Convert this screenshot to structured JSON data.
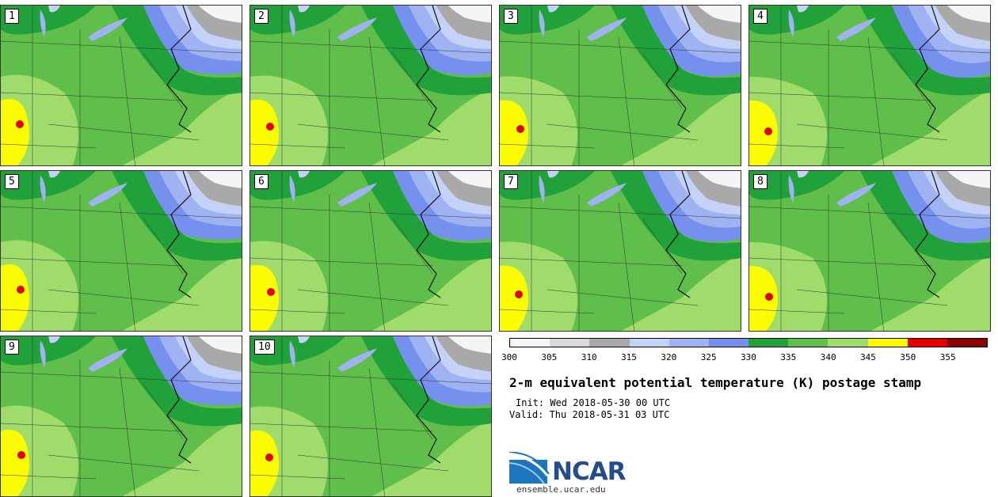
{
  "panels": [
    {
      "label": "1"
    },
    {
      "label": "2"
    },
    {
      "label": "3"
    },
    {
      "label": "4"
    },
    {
      "label": "5"
    },
    {
      "label": "6"
    },
    {
      "label": "7"
    },
    {
      "label": "8"
    },
    {
      "label": "9"
    },
    {
      "label": "10"
    }
  ],
  "colorbar": {
    "colors": [
      "#f5f5f5",
      "#d9d9d9",
      "#a9a9a9",
      "#c5d2f7",
      "#9fb2f2",
      "#7690ee",
      "#20a13a",
      "#5fbf4a",
      "#9fdc6b",
      "#fcfc00",
      "#e00000",
      "#8b0000"
    ],
    "ticks": [
      "300",
      "305",
      "310",
      "315",
      "320",
      "325",
      "330",
      "335",
      "340",
      "345",
      "350",
      "355"
    ]
  },
  "title": "2-m equivalent potential temperature (K) postage stamp",
  "init": "Init: Wed 2018-05-30 00 UTC",
  "valid": "Valid: Thu 2018-05-31 03 UTC",
  "logo": {
    "text": "NCAR",
    "site": "ensemble.ucar.edu"
  }
}
